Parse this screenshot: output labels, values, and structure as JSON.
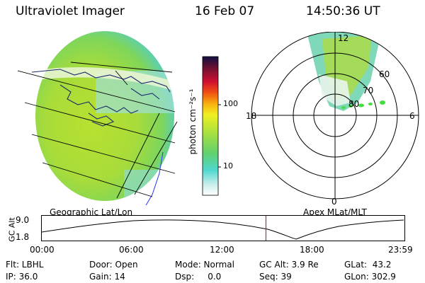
{
  "header": {
    "title": "Ultraviolet Imager",
    "date": "16 Feb 07",
    "time": "14:50:36 UT"
  },
  "colorbar": {
    "unit_label": "photon cm⁻²s⁻¹",
    "ticks": [
      "100",
      "10"
    ]
  },
  "polar": {
    "mlt_labels": {
      "top": "12",
      "left": "18",
      "right": "6",
      "bottom": "0"
    },
    "lat_labels": [
      "60",
      "70",
      "80"
    ]
  },
  "map_labels": {
    "left": "Geographic Lat/Lon",
    "right": "Apex MLat/MLT"
  },
  "timeline": {
    "ylabel": "GC Alt",
    "yticks": [
      "9.0",
      "1.8"
    ],
    "xticks": [
      "00:00",
      "06:00",
      "12:00",
      "18:00",
      "23:59"
    ],
    "current_time_fraction": 0.618
  },
  "info": {
    "filter": "Flt: LBHL",
    "ip": "IP: 36.0",
    "door": "Door: Open",
    "gain": "Gain: 14",
    "mode": "Mode: Normal",
    "dsp": "Dsp:     0.0",
    "gc_alt": "GC Alt: 3.9 Re",
    "seq": "Seq: 39",
    "glat": "GLat:  43.2",
    "glon": "GLon: 302.9"
  },
  "colors": {
    "background": "#ffffff",
    "time_marker": "#cc0000",
    "coast_line": "#1a2a6e"
  }
}
